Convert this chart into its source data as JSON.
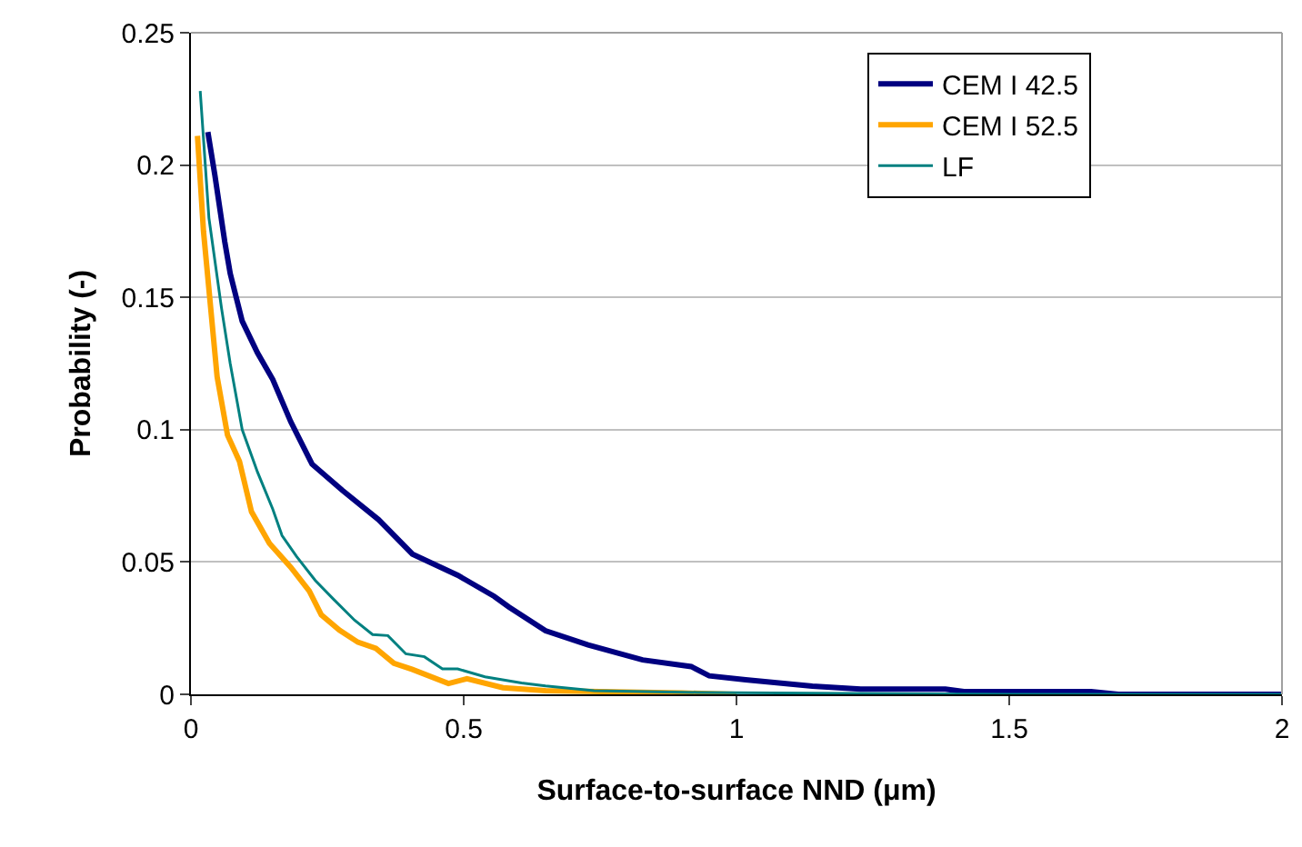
{
  "chart_data": {
    "type": "line",
    "xlabel": "Surface-to-surface NND (μm)",
    "ylabel": "Probability (-)",
    "xlim": [
      0,
      2
    ],
    "ylim": [
      0,
      0.25
    ],
    "xticks": [
      0,
      0.5,
      1,
      1.5,
      2
    ],
    "yticks": [
      0,
      0.05,
      0.1,
      0.15,
      0.2,
      0.25
    ],
    "grid": "y",
    "legend": "top right",
    "marker": "none",
    "line_style": "solid",
    "series": [
      {
        "name": "CEM I 42.5",
        "color": "#000080",
        "x": [
          0.031,
          0.044,
          0.062,
          0.072,
          0.094,
          0.122,
          0.15,
          0.183,
          0.222,
          0.278,
          0.344,
          0.406,
          0.489,
          0.556,
          0.583,
          0.65,
          0.728,
          0.828,
          0.917,
          0.95,
          1.017,
          1.139,
          1.228,
          1.383,
          1.417,
          1.5,
          1.65,
          1.7,
          2
        ],
        "values": [
          0.2125,
          0.196,
          0.171,
          0.159,
          0.141,
          0.129,
          0.119,
          0.103,
          0.087,
          0.077,
          0.066,
          0.053,
          0.045,
          0.037,
          0.033,
          0.024,
          0.0187,
          0.013,
          0.0105,
          0.007,
          0.0055,
          0.0031,
          0.002,
          0.002,
          0.001,
          0.001,
          0.001,
          0,
          0
        ]
      },
      {
        "name": "CEM I 52.5",
        "color": "#ffa500",
        "x": [
          0.012,
          0.023,
          0.048,
          0.067,
          0.089,
          0.111,
          0.144,
          0.183,
          0.217,
          0.239,
          0.272,
          0.306,
          0.339,
          0.372,
          0.406,
          0.472,
          0.506,
          0.572,
          0.65,
          0.9,
          1.0
        ],
        "values": [
          0.211,
          0.175,
          0.12,
          0.098,
          0.088,
          0.069,
          0.057,
          0.048,
          0.039,
          0.03,
          0.0243,
          0.0197,
          0.0174,
          0.0117,
          0.0094,
          0.0041,
          0.0059,
          0.0025,
          0.0014,
          0.0005,
          0
        ]
      },
      {
        "name": "LF",
        "color": "#008080",
        "x": [
          0.017,
          0.033,
          0.056,
          0.072,
          0.094,
          0.122,
          0.15,
          0.167,
          0.194,
          0.228,
          0.261,
          0.3,
          0.333,
          0.361,
          0.394,
          0.428,
          0.461,
          0.489,
          0.539,
          0.606,
          0.65,
          0.739,
          0.928,
          1.5,
          2
        ],
        "values": [
          0.228,
          0.18,
          0.146,
          0.125,
          0.1,
          0.084,
          0.07,
          0.06,
          0.052,
          0.043,
          0.036,
          0.028,
          0.0226,
          0.0222,
          0.0153,
          0.0142,
          0.0096,
          0.0096,
          0.0066,
          0.0043,
          0.0032,
          0.0014,
          0.0007,
          0,
          0
        ]
      }
    ]
  }
}
